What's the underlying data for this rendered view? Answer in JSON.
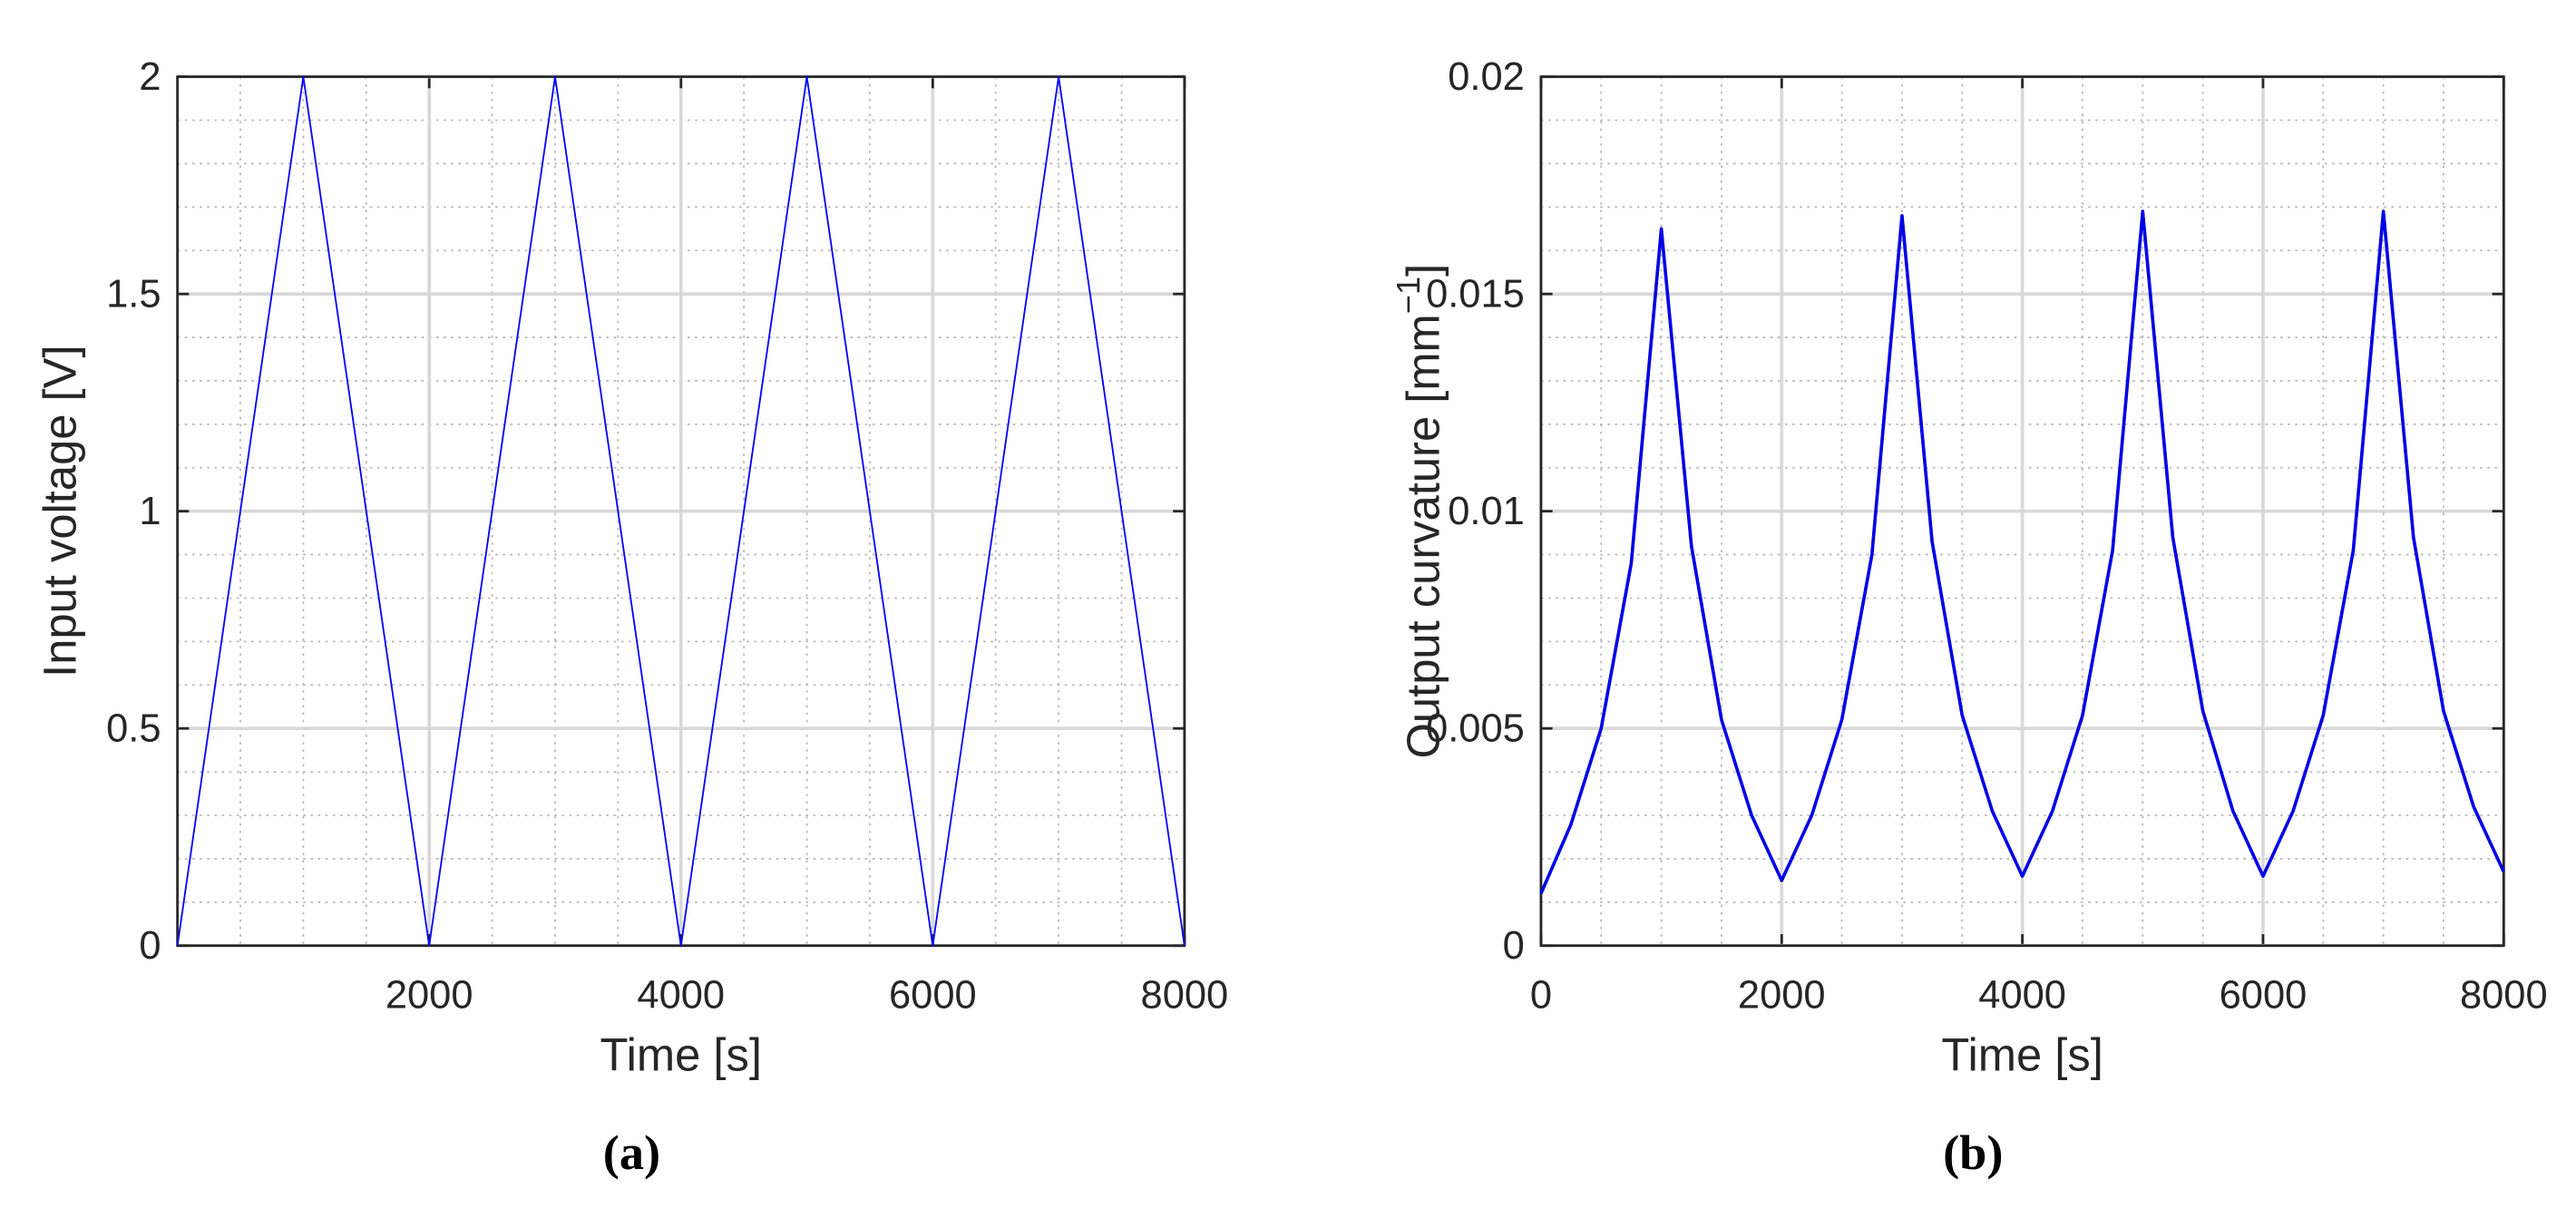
{
  "chart_data": [
    {
      "type": "line",
      "panel_label": "(a)",
      "xlabel": "Time [s]",
      "ylabel": "Input voltage [V]",
      "x": [
        0,
        1000,
        2000,
        3000,
        4000,
        5000,
        6000,
        7000,
        8000
      ],
      "series": [
        {
          "color": "#0000ff",
          "values": [
            0,
            2,
            0,
            2,
            0,
            2,
            0,
            2,
            0
          ]
        }
      ],
      "xlim": [
        0,
        8000
      ],
      "xticks": [
        2000,
        4000,
        6000,
        8000
      ],
      "ylim": [
        0,
        2
      ],
      "yticks": [
        0,
        0.5,
        1,
        1.5,
        2
      ],
      "grid": true,
      "minor_grid": {
        "x": 500,
        "y": 0.1
      },
      "line_width": 1
    },
    {
      "type": "line",
      "panel_label": "(b)",
      "xlabel": "Time [s]",
      "ylabel": "Output curvature [mm",
      "ylabel_sup": "−1",
      "ylabel_end": "]",
      "x": [
        0,
        250,
        500,
        750,
        1000,
        1250,
        1500,
        1750,
        2000,
        2250,
        2500,
        2750,
        3000,
        3250,
        3500,
        3750,
        4000,
        4250,
        4500,
        4750,
        5000,
        5250,
        5500,
        5750,
        6000,
        6250,
        6500,
        6750,
        7000,
        7250,
        7500,
        7750,
        8000
      ],
      "series": [
        {
          "color": "#0000e6",
          "values": [
            0.0012,
            0.0028,
            0.005,
            0.0088,
            0.0165,
            0.0092,
            0.0052,
            0.003,
            0.0015,
            0.003,
            0.0052,
            0.009,
            0.0168,
            0.0093,
            0.0053,
            0.0031,
            0.0016,
            0.0031,
            0.0053,
            0.0091,
            0.0169,
            0.0094,
            0.0054,
            0.0031,
            0.0016,
            0.0031,
            0.0053,
            0.0091,
            0.0169,
            0.0094,
            0.0054,
            0.0032,
            0.0017
          ]
        }
      ],
      "xlim": [
        0,
        8000
      ],
      "xticks": [
        0,
        2000,
        4000,
        6000,
        8000
      ],
      "ylim": [
        0,
        0.02
      ],
      "yticks": [
        0,
        0.005,
        0.01,
        0.015,
        0.02
      ],
      "grid": true,
      "minor_grid": {
        "x": 500,
        "y": 0.001
      },
      "line_width": 2
    }
  ]
}
